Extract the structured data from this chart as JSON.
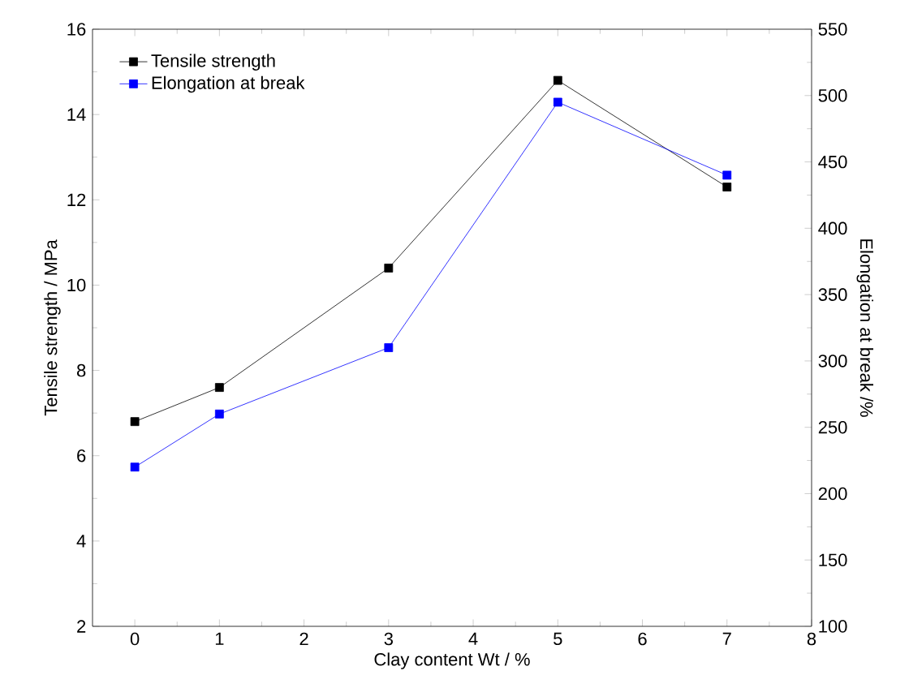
{
  "chart_data": {
    "type": "line",
    "xlabel": "Clay content Wt / %",
    "ylabel": "Tensile strength / MPa",
    "y2label": "Elongation at break /%",
    "x": [
      0,
      1,
      3,
      5,
      7
    ],
    "series": [
      {
        "name": "Tensile strength",
        "color": "#000000",
        "values": [
          6.8,
          7.6,
          10.4,
          14.8,
          12.3
        ]
      },
      {
        "name": "Elongation at break",
        "color": "#0000ff",
        "values": [
          220,
          260,
          310,
          495,
          440
        ],
        "axis": "y2"
      }
    ],
    "xlim": [
      -0.5,
      8
    ],
    "xticks": [
      0,
      1,
      2,
      3,
      4,
      5,
      6,
      7,
      8
    ],
    "ylim": [
      2,
      16
    ],
    "yticks": [
      2,
      4,
      6,
      8,
      10,
      12,
      14,
      16
    ],
    "y2lim": [
      100,
      550
    ],
    "y2ticks": [
      100,
      150,
      200,
      250,
      300,
      350,
      400,
      450,
      500,
      550
    ],
    "marker": "square",
    "line_style": "solid",
    "legend": "top left",
    "grid": false
  }
}
